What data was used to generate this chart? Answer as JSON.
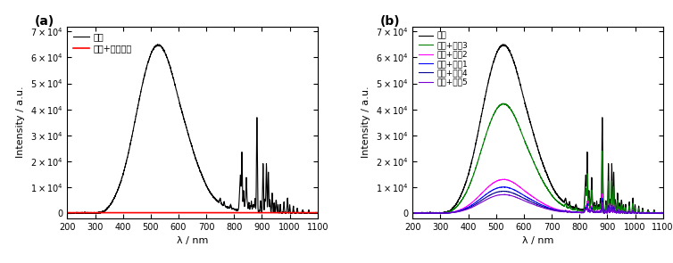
{
  "xlim": [
    200,
    1100
  ],
  "ylim": [
    -2000,
    72000
  ],
  "yticks": [
    0,
    10000,
    20000,
    30000,
    40000,
    50000,
    60000,
    70000
  ],
  "xticks": [
    200,
    300,
    400,
    500,
    600,
    700,
    800,
    900,
    1000,
    1100
  ],
  "xlabel": "λ / nm",
  "ylabel": "Intensity / a.u.",
  "panel_a_label": "(a)",
  "panel_b_label": "(b)",
  "legend_a": [
    "氟灯",
    "氟灯+光防护镜"
  ],
  "legend_b": [
    "氟灯",
    "氟灯+墨镜1",
    "氟灯+墨镜2",
    "氟灯+墨镜3",
    "氟灯+墨镜4",
    "氟灯+墨镜5"
  ],
  "colors_b": [
    "black",
    "blue",
    "magenta",
    "green",
    "#000080",
    "#7B00D4"
  ]
}
